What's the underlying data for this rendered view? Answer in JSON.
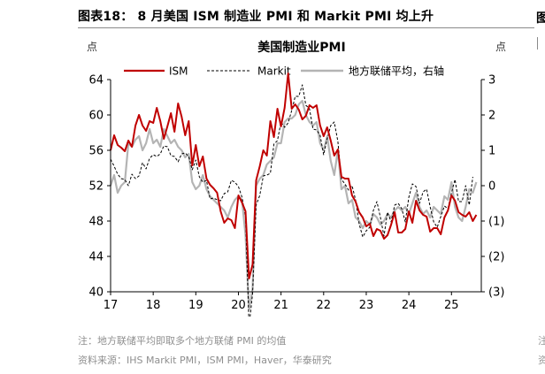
{
  "figure": {
    "title": "图表18： 8 月美国 ISM 制造业 PMI 和 Markit PMI 均上升",
    "note": "注：地方联储平均即取多个地方联储 PMI 的均值",
    "source": "资料来源：IHS Markit PMI，ISM PMI，Haver，华泰研究"
  },
  "colors": {
    "ism": "#c00000",
    "markit": "#000000",
    "fed": "#b4b4b4",
    "axis": "#000000",
    "footnote": "#8f8f8f"
  },
  "chart_data": {
    "type": "line",
    "title": "美国制造业PMI",
    "ylabel_left": "点",
    "ylabel_right": "点",
    "xlim": [
      2017.0,
      2025.7
    ],
    "ylim_left": [
      40,
      64
    ],
    "ylim_right": [
      -3,
      3
    ],
    "yticks_left": [
      64,
      60,
      56,
      52,
      48,
      44,
      40
    ],
    "yticks_right": [
      3,
      2,
      1,
      0,
      -1,
      -2,
      -3
    ],
    "yticklabels_right": [
      "3",
      "2",
      "1",
      "0",
      "(1)",
      "(2)",
      "(3)"
    ],
    "xticks": [
      2017,
      2018,
      2019,
      2020,
      2021,
      2022,
      2023,
      2024,
      2025
    ],
    "xticklabels": [
      "17",
      "18",
      "19",
      "20",
      "21",
      "22",
      "23",
      "24",
      "25"
    ],
    "grid": false,
    "legend": "top",
    "x_start": 2017.0,
    "x_step": 0.0833333,
    "series": [
      {
        "name": "ISM",
        "axis": "left",
        "style": "solid",
        "values": [
          56.0,
          57.7,
          56.6,
          56.3,
          55.9,
          57.1,
          56.4,
          58.8,
          60.0,
          58.8,
          58.2,
          59.3,
          59.1,
          60.8,
          59.3,
          57.3,
          58.7,
          60.2,
          58.1,
          61.3,
          59.8,
          57.7,
          59.3,
          54.3,
          56.6,
          54.2,
          55.3,
          52.8,
          52.1,
          51.7,
          51.2,
          49.1,
          47.8,
          48.3,
          48.1,
          47.2,
          50.9,
          50.1,
          49.1,
          41.5,
          43.1,
          52.6,
          54.2,
          56.0,
          55.4,
          59.3,
          57.5,
          60.7,
          58.7,
          60.8,
          64.7,
          60.7,
          61.2,
          60.6,
          59.5,
          59.9,
          61.1,
          60.8,
          61.1,
          58.8,
          57.6,
          58.6,
          57.1,
          55.4,
          56.1,
          53.0,
          52.8,
          52.8,
          50.9,
          50.2,
          49.0,
          48.4,
          47.4,
          47.7,
          46.3,
          47.1,
          46.9,
          46.0,
          46.4,
          47.6,
          49.0,
          46.7,
          46.7,
          47.1,
          49.1,
          47.8,
          50.3,
          49.2,
          48.7,
          48.5,
          46.8,
          47.2,
          47.2,
          46.5,
          48.4,
          49.2,
          50.9,
          50.3,
          49.0,
          48.7,
          48.5,
          49.0,
          48.0,
          48.7
        ]
      },
      {
        "name": "Markit",
        "axis": "left",
        "style": "dashed",
        "values": [
          55.0,
          54.2,
          53.3,
          52.8,
          52.7,
          52.0,
          53.3,
          52.8,
          53.1,
          54.6,
          53.9,
          55.1,
          55.5,
          55.3,
          55.6,
          56.5,
          56.4,
          55.4,
          55.3,
          54.7,
          55.6,
          55.7,
          55.3,
          53.8,
          54.9,
          53.0,
          52.4,
          52.6,
          50.5,
          50.6,
          50.4,
          50.3,
          51.1,
          51.3,
          52.6,
          52.4,
          51.9,
          50.7,
          48.5,
          36.1,
          39.8,
          49.8,
          50.9,
          53.1,
          53.2,
          53.4,
          56.7,
          57.1,
          59.2,
          58.6,
          59.1,
          60.5,
          62.1,
          62.1,
          63.4,
          61.1,
          60.7,
          58.4,
          58.3,
          57.7,
          55.5,
          57.3,
          58.8,
          59.2,
          57.0,
          52.7,
          52.2,
          51.5,
          52.0,
          50.4,
          47.7,
          46.2,
          46.9,
          47.3,
          49.2,
          50.2,
          48.4,
          46.3,
          49.0,
          47.9,
          49.8,
          50.0,
          49.4,
          47.9,
          50.7,
          52.2,
          51.9,
          50.0,
          51.3,
          51.6,
          49.6,
          47.9,
          47.3,
          48.5,
          49.7,
          49.4,
          51.2,
          52.7,
          50.2,
          50.2,
          52.0,
          49.8,
          53.0
        ]
      },
      {
        "name": "地方联储平均，右轴",
        "axis": "right",
        "style": "solid",
        "values": [
          0.0,
          0.3,
          -0.2,
          0.0,
          0.1,
          1.2,
          1.1,
          1.3,
          1.4,
          1.0,
          1.2,
          1.6,
          1.2,
          1.3,
          1.1,
          1.6,
          1.4,
          1.2,
          1.3,
          1.1,
          1.0,
          0.8,
          0.9,
          0.1,
          -0.1,
          0.0,
          0.3,
          -0.1,
          -0.3,
          -0.4,
          -0.5,
          -0.6,
          -0.7,
          -0.9,
          -0.6,
          -0.4,
          -0.3,
          -0.4,
          -1.4,
          -3.5,
          -2.9,
          0.0,
          0.2,
          0.3,
          0.6,
          0.7,
          0.8,
          1.2,
          1.2,
          1.8,
          1.9,
          1.9,
          2.0,
          2.3,
          2.4,
          2.0,
          1.8,
          1.7,
          1.8,
          1.2,
          1.0,
          1.4,
          0.7,
          0.3,
          1.0,
          -0.1,
          0.0,
          -0.5,
          -0.4,
          -0.9,
          -1.0,
          -1.2,
          -1.0,
          -1.1,
          -0.8,
          -0.9,
          -1.1,
          -1.0,
          -0.8,
          -0.9,
          -0.7,
          -0.6,
          -0.7,
          -0.6,
          -0.8,
          -0.5,
          -0.2,
          -0.6,
          -0.8,
          -0.7,
          -0.9,
          -0.6,
          -0.7,
          -0.8,
          -0.3,
          -0.4,
          0.1,
          -0.6,
          -0.9,
          -1.0,
          -0.6,
          -0.1,
          -0.2,
          0.1
        ]
      }
    ]
  }
}
